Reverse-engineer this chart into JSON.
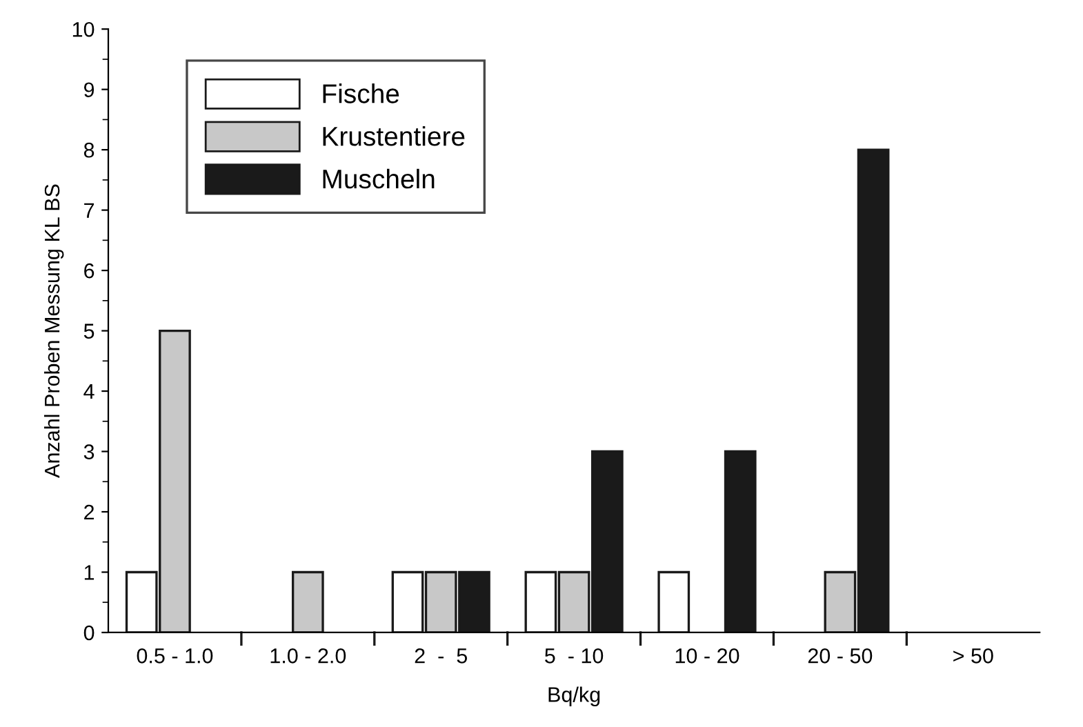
{
  "chart_data": {
    "type": "bar",
    "xlabel": "Bq/kg",
    "ylabel": "Anzahl Proben Messung KL BS",
    "categories": [
      "0.5 - 1.0",
      "1.0 - 2.0",
      "2  -  5",
      "5  - 10",
      "10 - 20",
      "20 - 50",
      "> 50"
    ],
    "series": [
      {
        "name": "Fische",
        "color": "#ffffff",
        "values": [
          1,
          0,
          1,
          1,
          1,
          0,
          0
        ]
      },
      {
        "name": "Krustentiere",
        "color": "#c8c8c8",
        "values": [
          5,
          1,
          1,
          1,
          0,
          1,
          0
        ]
      },
      {
        "name": "Muscheln",
        "color": "#1a1a1a",
        "values": [
          0,
          0,
          1,
          3,
          3,
          8,
          0
        ]
      }
    ],
    "ylim": [
      0,
      10
    ],
    "yticks": [
      0,
      1,
      2,
      3,
      4,
      5,
      6,
      7,
      8,
      9,
      10
    ],
    "grid": false,
    "legend": "top left"
  }
}
